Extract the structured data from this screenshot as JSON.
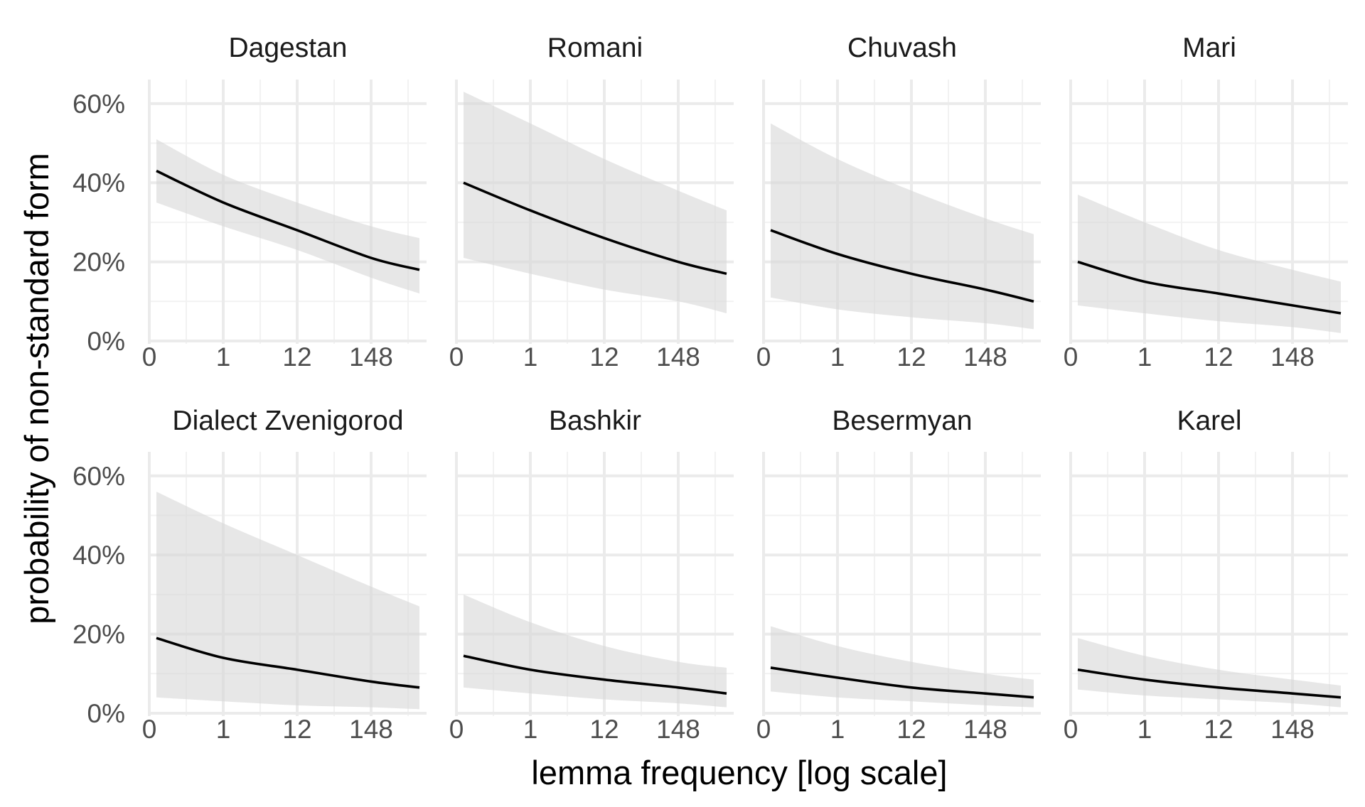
{
  "chart_data": {
    "type": "line",
    "layout": "facet-grid",
    "xlabel": "lemma frequency [log scale]",
    "ylabel": "probability of non-standard form",
    "x_scale": "log",
    "x_tick_labels": [
      "0",
      "1",
      "12",
      "148"
    ],
    "y_tick_labels": [
      "0%",
      "20%",
      "40%",
      "60%"
    ],
    "ylim": [
      0,
      0.65
    ],
    "grid": true,
    "band": "confidence interval (shaded)",
    "colors": {
      "line": "#000000",
      "band": "#d9d9d9",
      "panel_grid": "#ebebeb"
    },
    "x_points": [
      "0",
      "1",
      "12",
      "148"
    ],
    "panels": [
      {
        "name": "Dagestan",
        "estimate": [
          0.43,
          0.35,
          0.28,
          0.21
        ],
        "end": 0.18,
        "lower": [
          0.35,
          0.29,
          0.23,
          0.16
        ],
        "upper": [
          0.51,
          0.42,
          0.35,
          0.29
        ],
        "end_lower": 0.12,
        "end_upper": 0.26
      },
      {
        "name": "Romani",
        "estimate": [
          0.4,
          0.33,
          0.26,
          0.2
        ],
        "end": 0.17,
        "lower": [
          0.21,
          0.17,
          0.13,
          0.1
        ],
        "upper": [
          0.63,
          0.55,
          0.46,
          0.38
        ],
        "end_lower": 0.07,
        "end_upper": 0.33
      },
      {
        "name": "Chuvash",
        "estimate": [
          0.28,
          0.22,
          0.17,
          0.13
        ],
        "end": 0.1,
        "lower": [
          0.11,
          0.08,
          0.06,
          0.045
        ],
        "upper": [
          0.55,
          0.46,
          0.38,
          0.31
        ],
        "end_lower": 0.03,
        "end_upper": 0.27
      },
      {
        "name": "Mari",
        "estimate": [
          0.2,
          0.15,
          0.12,
          0.09
        ],
        "end": 0.07,
        "lower": [
          0.09,
          0.07,
          0.05,
          0.035
        ],
        "upper": [
          0.37,
          0.3,
          0.23,
          0.18
        ],
        "end_lower": 0.02,
        "end_upper": 0.15
      },
      {
        "name": "Dialect Zvenigorod",
        "estimate": [
          0.19,
          0.14,
          0.11,
          0.08
        ],
        "end": 0.065,
        "lower": [
          0.04,
          0.03,
          0.02,
          0.015
        ],
        "upper": [
          0.56,
          0.48,
          0.4,
          0.32
        ],
        "end_lower": 0.01,
        "end_upper": 0.27
      },
      {
        "name": "Bashkir",
        "estimate": [
          0.145,
          0.11,
          0.085,
          0.065
        ],
        "end": 0.05,
        "lower": [
          0.065,
          0.05,
          0.035,
          0.025
        ],
        "upper": [
          0.3,
          0.23,
          0.17,
          0.13
        ],
        "end_lower": 0.015,
        "end_upper": 0.115
      },
      {
        "name": "Besermyan",
        "estimate": [
          0.115,
          0.09,
          0.065,
          0.05
        ],
        "end": 0.04,
        "lower": [
          0.055,
          0.04,
          0.03,
          0.02
        ],
        "upper": [
          0.22,
          0.17,
          0.13,
          0.1
        ],
        "end_lower": 0.015,
        "end_upper": 0.085
      },
      {
        "name": "Karel",
        "estimate": [
          0.11,
          0.085,
          0.065,
          0.05
        ],
        "end": 0.04,
        "lower": [
          0.06,
          0.045,
          0.035,
          0.025
        ],
        "upper": [
          0.19,
          0.145,
          0.11,
          0.085
        ],
        "end_lower": 0.015,
        "end_upper": 0.07
      }
    ]
  }
}
